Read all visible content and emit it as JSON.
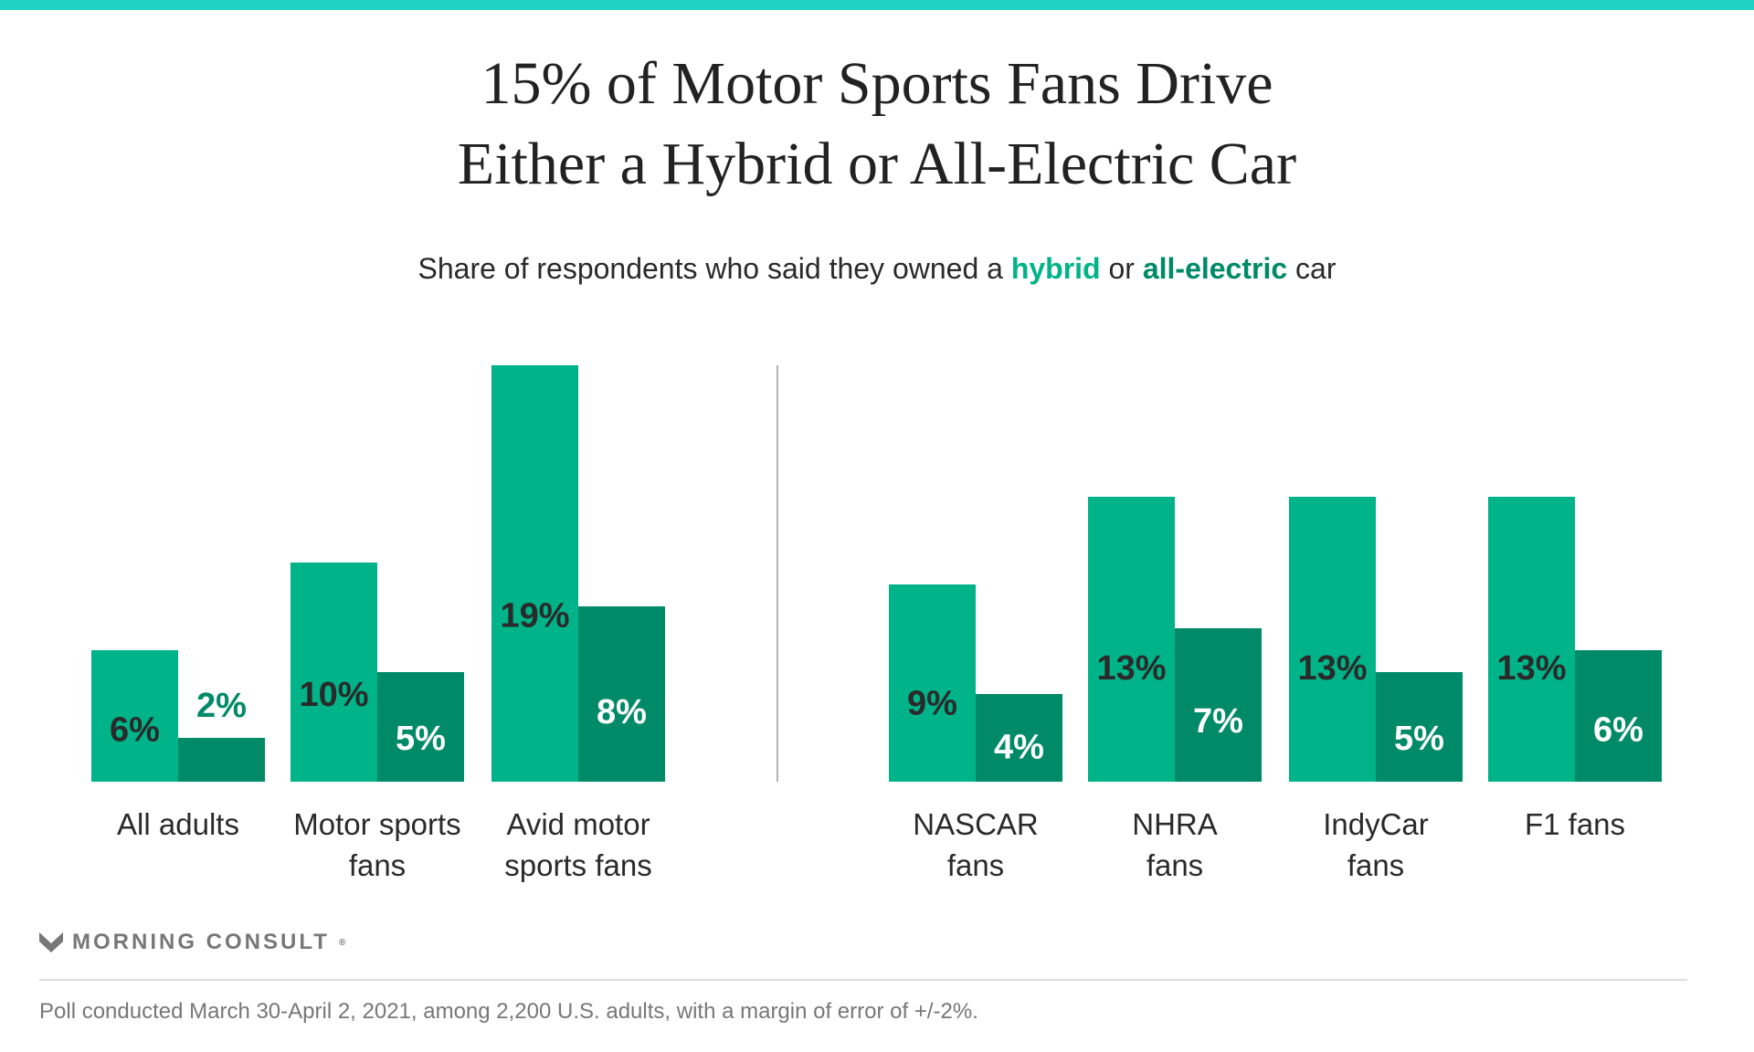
{
  "title_lines": [
    "15% of Motor Sports Fans Drive",
    "Either a Hybrid or All-Electric Car"
  ],
  "subtitle": {
    "prefix": "Share of respondents who said they owned a ",
    "hybrid": "hybrid",
    "mid": " or ",
    "electric": "all-electric",
    "suffix": " car"
  },
  "colors": {
    "hybrid": "#00b388",
    "electric": "#008a68",
    "top_bar": "#1fd2c4"
  },
  "chart_data": {
    "type": "bar",
    "categories": [
      [
        "All adults"
      ],
      [
        "Motor sports",
        "fans"
      ],
      [
        "Avid motor",
        "sports fans"
      ],
      [
        "NASCAR",
        "fans"
      ],
      [
        "NHRA",
        "fans"
      ],
      [
        "IndyCar",
        "fans"
      ],
      [
        "F1 fans"
      ]
    ],
    "series": [
      {
        "name": "hybrid",
        "values": [
          6,
          10,
          19,
          9,
          13,
          13,
          13
        ]
      },
      {
        "name": "all-electric",
        "values": [
          2,
          5,
          8,
          4,
          7,
          5,
          6
        ]
      }
    ],
    "value_suffix": "%",
    "ylim": [
      0,
      19
    ],
    "grid": false,
    "divider_after_category": 2
  },
  "logo": {
    "text": "MORNING CONSULT",
    "mark": "®"
  },
  "footer": "Poll conducted March 30-April 2, 2021, among 2,200 U.S. adults, with a margin of error of +/-2%."
}
